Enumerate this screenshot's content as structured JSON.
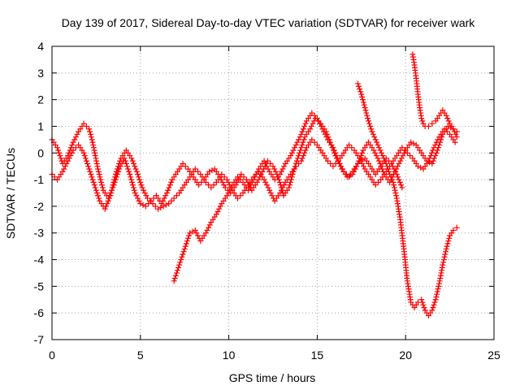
{
  "chart_data": {
    "type": "scatter",
    "title": "Day 139 of 2017, Sidereal Day-to-day VTEC variation (SDTVAR) for receiver wark",
    "xlabel": "GPS time / hours",
    "ylabel": "SDTVAR / TECUs",
    "xlim": [
      0,
      25
    ],
    "ylim": [
      -7,
      4
    ],
    "xticks": [
      "0",
      "5",
      "10",
      "15",
      "20",
      "25"
    ],
    "yticks": [
      "4",
      "3",
      "2",
      "1",
      "0",
      "-1",
      "-2",
      "-3",
      "-4",
      "-5",
      "-6",
      "-7"
    ],
    "grid": true,
    "marker": "+",
    "color": "#ff0000",
    "series": [
      {
        "x": [
          0.0,
          0.3,
          0.6,
          0.9,
          1.2,
          1.5,
          1.8,
          2.1,
          2.3,
          2.6,
          2.9,
          3.2,
          3.5,
          3.8,
          4.1,
          4.4,
          4.7,
          5.0,
          5.3,
          5.6,
          5.9,
          6.2,
          6.5,
          6.8,
          7.1,
          7.4,
          7.7,
          8.0,
          8.3,
          8.6,
          8.9,
          9.2,
          9.5,
          9.8,
          10.1,
          10.4,
          10.7,
          11.0,
          11.3,
          11.6,
          11.9,
          12.2,
          12.5,
          12.8,
          13.1,
          13.4,
          13.7,
          14.0,
          14.3,
          14.6,
          14.9,
          15.2,
          15.5,
          15.8,
          16.1,
          16.4,
          16.7,
          17.0,
          17.3,
          17.6,
          17.9,
          18.2,
          18.5,
          18.8,
          19.1,
          19.4,
          19.7,
          20.0,
          20.3,
          20.6,
          20.9,
          21.2,
          21.5,
          21.8,
          22.1,
          22.4,
          22.7,
          22.9
        ],
        "y": [
          0.5,
          0.2,
          -0.4,
          -0.1,
          0.4,
          0.8,
          1.1,
          0.9,
          0.4,
          -0.6,
          -1.4,
          -1.7,
          -1.2,
          -0.6,
          -0.2,
          -0.8,
          -1.5,
          -1.9,
          -2.0,
          -1.8,
          -1.6,
          -1.9,
          -1.5,
          -1.0,
          -0.7,
          -0.4,
          -0.6,
          -0.9,
          -1.2,
          -1.0,
          -0.7,
          -0.6,
          -0.9,
          -1.3,
          -1.5,
          -1.2,
          -0.8,
          -1.0,
          -1.4,
          -1.1,
          -0.7,
          -0.3,
          -0.5,
          -0.9,
          -1.6,
          -1.3,
          -0.6,
          0.0,
          0.6,
          0.9,
          1.3,
          1.1,
          0.8,
          0.3,
          -0.2,
          -0.6,
          -0.9,
          -0.8,
          -0.4,
          0.1,
          0.4,
          0.1,
          -0.3,
          -0.8,
          -1.1,
          -0.7,
          -0.3,
          0.1,
          0.4,
          0.3,
          0.0,
          -0.3,
          -0.4,
          0.1,
          0.7,
          1.0,
          0.9,
          0.6
        ]
      },
      {
        "x": [
          0.0,
          0.3,
          0.6,
          0.9,
          1.2,
          1.5,
          1.8,
          2.1,
          2.4,
          2.7,
          3.0,
          3.3,
          3.6,
          3.9,
          4.2,
          4.5,
          4.8,
          5.1,
          5.4,
          5.7,
          6.0,
          6.3,
          6.6,
          6.9,
          7.2,
          7.5,
          7.8,
          8.1,
          8.4,
          8.7,
          9.0,
          9.3,
          9.6,
          9.9,
          10.2,
          10.5,
          10.8,
          11.1,
          11.4,
          11.7,
          12.0,
          12.3,
          12.6,
          12.9,
          13.2,
          13.5,
          13.8,
          14.1,
          14.4,
          14.7,
          15.0,
          15.3,
          15.6,
          15.9,
          16.2,
          16.5,
          16.8,
          17.1,
          17.4,
          17.7,
          18.0,
          18.3,
          18.6,
          18.9,
          19.2,
          19.5,
          19.8,
          20.1,
          20.4,
          20.7,
          21.0,
          21.3,
          21.6,
          21.9,
          22.2,
          22.5,
          22.8
        ],
        "y": [
          -0.8,
          -1.0,
          -0.7,
          -0.3,
          0.1,
          0.3,
          0.0,
          -0.6,
          -1.2,
          -1.8,
          -2.1,
          -1.6,
          -0.8,
          -0.2,
          0.1,
          -0.2,
          -0.7,
          -1.3,
          -1.7,
          -1.9,
          -2.1,
          -2.0,
          -1.9,
          -1.7,
          -1.5,
          -1.2,
          -0.9,
          -0.6,
          -0.8,
          -1.1,
          -1.3,
          -1.1,
          -0.8,
          -1.0,
          -1.4,
          -1.7,
          -1.5,
          -1.2,
          -0.9,
          -0.7,
          -1.0,
          -1.4,
          -1.8,
          -1.5,
          -1.1,
          -0.8,
          -0.5,
          -0.3,
          0.2,
          0.5,
          0.3,
          0.0,
          -0.3,
          -0.5,
          -0.3,
          0.0,
          0.3,
          0.1,
          -0.2,
          -0.6,
          -0.9,
          -1.2,
          -1.0,
          -0.7,
          -0.4,
          -0.1,
          0.2,
          0.0,
          -0.2,
          -0.5,
          -0.6,
          -0.3,
          0.2,
          0.6,
          0.9,
          0.7,
          0.4
        ]
      },
      {
        "x": [
          6.9,
          7.2,
          7.5,
          7.8,
          8.1,
          8.4,
          8.7,
          9.0,
          9.3,
          9.6,
          9.9,
          10.2,
          10.5,
          10.8,
          11.1,
          11.4,
          11.7,
          12.0,
          12.3,
          12.6,
          12.9,
          13.2,
          13.5,
          13.8,
          14.1,
          14.4,
          14.7,
          15.0,
          15.3,
          15.6,
          15.9,
          16.2,
          16.5,
          16.8,
          17.1,
          17.4,
          17.7,
          18.0,
          18.3,
          18.6,
          18.9,
          19.2,
          19.5,
          19.8
        ],
        "y": [
          -4.8,
          -4.2,
          -3.6,
          -3.0,
          -2.9,
          -3.3,
          -3.0,
          -2.6,
          -2.3,
          -1.9,
          -1.6,
          -1.2,
          -0.9,
          -1.1,
          -1.4,
          -1.0,
          -0.6,
          -0.3,
          -0.7,
          -1.0,
          -0.8,
          -0.4,
          -0.1,
          0.3,
          0.7,
          1.2,
          1.5,
          1.3,
          0.9,
          0.5,
          0.2,
          -0.3,
          -0.7,
          -0.9,
          -0.6,
          -0.3,
          -0.2,
          -0.5,
          -0.8,
          -0.5,
          -0.2,
          -0.4,
          -0.8,
          -1.3
        ]
      },
      {
        "x": [
          17.3,
          17.5,
          17.7,
          17.9,
          18.1,
          18.3,
          18.5,
          18.7,
          18.9,
          19.1,
          19.3,
          19.5,
          19.7,
          19.9,
          20.1,
          20.3,
          20.5,
          20.7,
          20.9,
          21.1,
          21.3,
          21.5,
          21.7,
          21.9,
          22.1,
          22.3,
          22.5,
          22.7,
          22.9
        ],
        "y": [
          2.6,
          2.2,
          1.7,
          1.2,
          0.8,
          0.5,
          0.2,
          -0.1,
          -0.4,
          -0.8,
          -1.1,
          -1.7,
          -2.5,
          -3.6,
          -4.8,
          -5.6,
          -5.8,
          -5.6,
          -5.5,
          -5.9,
          -6.1,
          -5.9,
          -5.5,
          -4.9,
          -4.2,
          -3.6,
          -3.1,
          -2.9,
          -2.8
        ]
      },
      {
        "x": [
          20.4,
          20.5,
          20.6,
          20.7,
          20.8,
          20.9,
          21.0,
          21.1,
          21.3,
          21.5,
          21.7,
          21.9,
          22.1,
          22.3,
          22.5,
          22.7,
          22.9
        ],
        "y": [
          3.7,
          3.3,
          2.8,
          2.2,
          1.7,
          1.3,
          1.1,
          1.0,
          1.0,
          1.1,
          1.2,
          1.4,
          1.6,
          1.4,
          1.1,
          0.9,
          0.8
        ]
      }
    ]
  }
}
